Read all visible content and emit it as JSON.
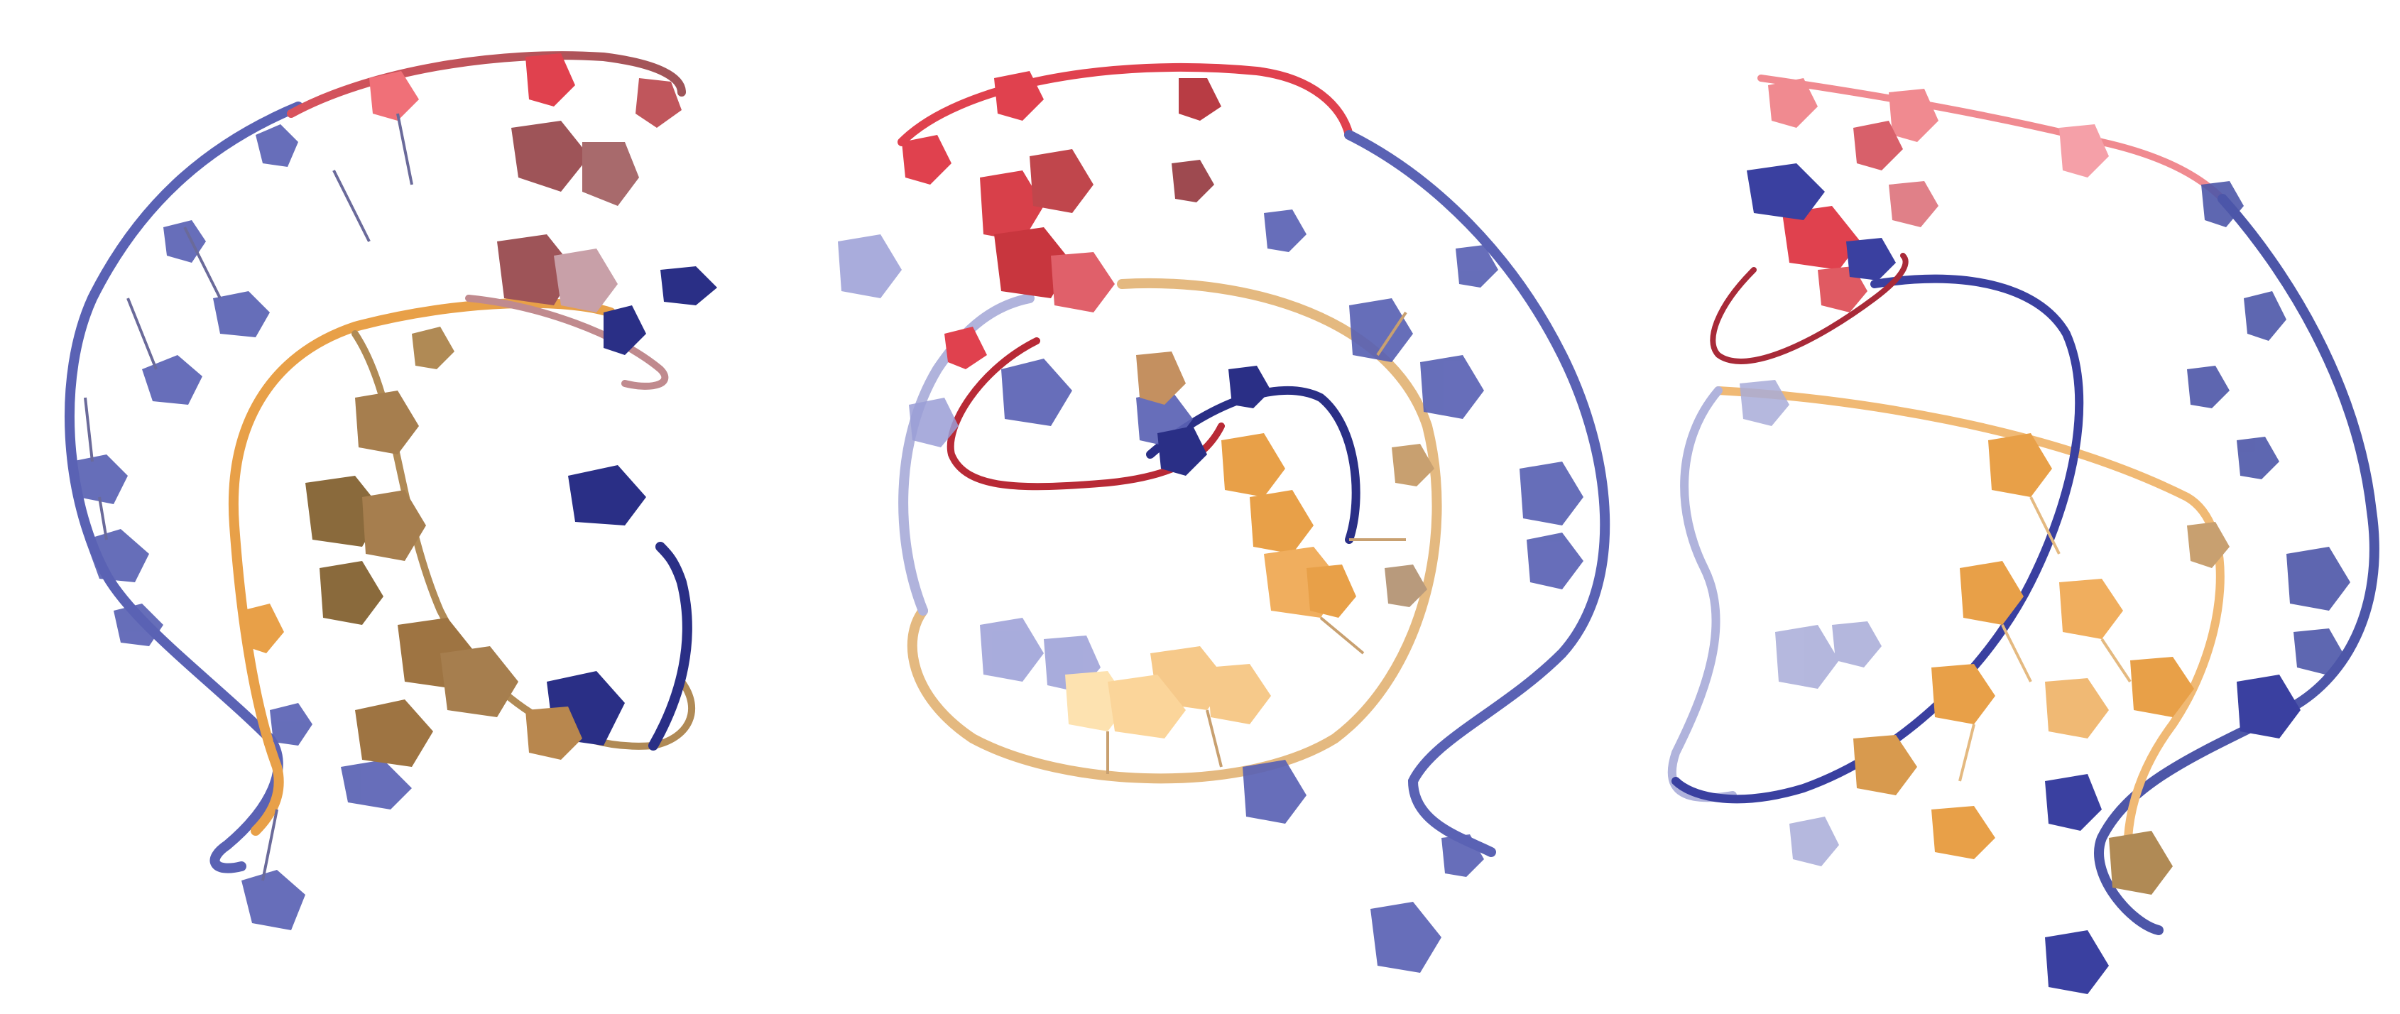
{
  "figure": {
    "panel_count": 3,
    "background": "#ffffff",
    "palette": {
      "blue": "#4d56a8",
      "blue_light": "#8f93cf",
      "blue_dark": "#2a2f86",
      "red": "#e0414e",
      "red_light": "#f08a90",
      "red_brown": "#9e5458",
      "orange": "#e8a048",
      "orange_light": "#fde2b0",
      "tan": "#b08a55",
      "brown": "#8a6a3c"
    }
  }
}
